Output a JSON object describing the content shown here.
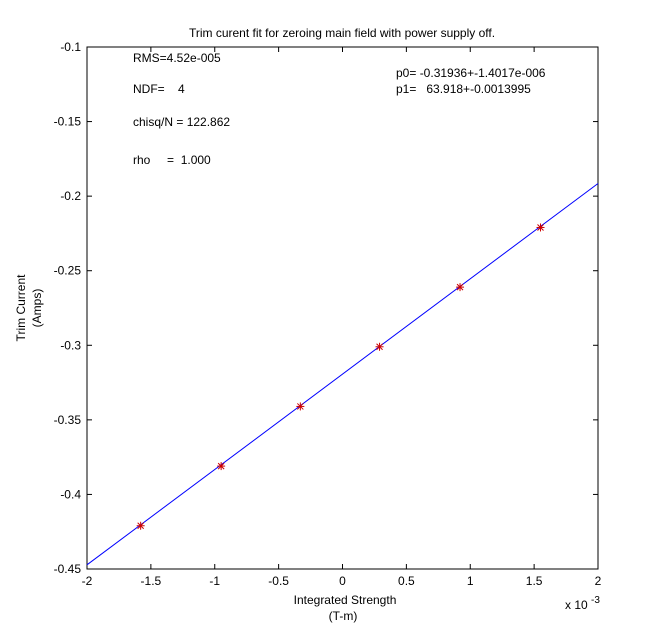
{
  "chart_data": {
    "type": "scatter",
    "title": "Trim curent fit for zeroing main field with power supply off.",
    "xlabel": [
      "Integrated Strength",
      "(T-m)"
    ],
    "ylabel": [
      "Trim Current",
      "(Amps)"
    ],
    "x_exponent_label": "x 10",
    "x_exponent_power": "-3",
    "xlim": [
      -2,
      2
    ],
    "ylim": [
      -0.45,
      -0.1
    ],
    "xticks": [
      -2,
      -1.5,
      -1,
      -0.5,
      0,
      0.5,
      1,
      1.5,
      2
    ],
    "xtick_labels": [
      "-2",
      "-1.5",
      "-1",
      "-0.5",
      "0",
      "0.5",
      "1",
      "1.5",
      "2"
    ],
    "yticks": [
      -0.1,
      -0.15,
      -0.2,
      -0.25,
      -0.3,
      -0.35,
      -0.4,
      -0.45
    ],
    "ytick_labels": [
      "-0.1",
      "-0.15",
      "-0.2",
      "-0.25",
      "-0.3",
      "-0.35",
      "-0.4",
      "-0.45"
    ],
    "grid": false,
    "points": {
      "color": "#cc0000",
      "x": [
        -1.58,
        -0.95,
        -0.33,
        0.29,
        0.92,
        1.55
      ],
      "y": [
        -0.421,
        -0.381,
        -0.341,
        -0.301,
        -0.261,
        -0.221
      ]
    },
    "fit_line": {
      "color": "#0000ff",
      "x": [
        -2,
        2
      ],
      "y": [
        -0.4472,
        -0.1915
      ]
    },
    "annotations_left": [
      "RMS=4.52e-005",
      "NDF=    4",
      "chisq/N = 122.862",
      "rho     =  1.000"
    ],
    "annotations_right": [
      "p0= -0.31936+-1.4017e-006",
      "p1=   63.918+-0.0013995"
    ]
  }
}
